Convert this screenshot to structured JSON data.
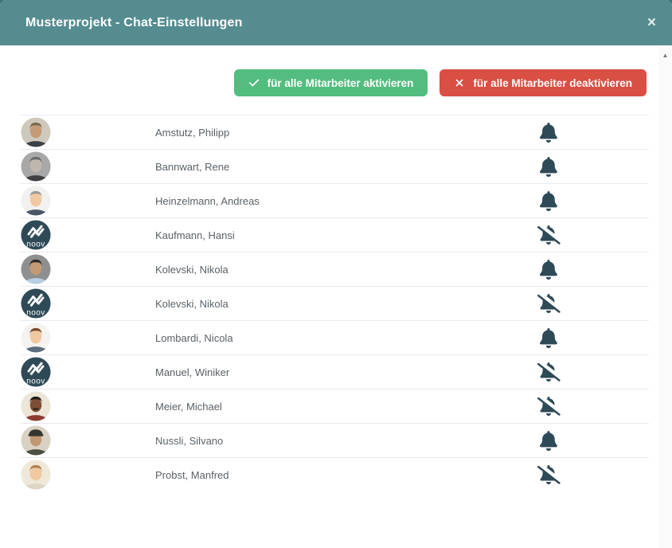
{
  "colors": {
    "backdrop": "#3e7378",
    "header_bg": "#558c90",
    "activate_bg": "#53bd7f",
    "deactivate_bg": "#d94f43",
    "divider": "#e7eaf0",
    "name_text": "#5a6167",
    "bell_icon": "#2e4a57"
  },
  "modal": {
    "title": "Musterprojekt - Chat-Einstellungen",
    "close_glyph": "×"
  },
  "toolbar": {
    "activate_button_label": "für alle Mitarbeiter aktivieren",
    "deactivate_button_label": "für alle Mitarbeiter deaktivieren"
  },
  "scrollbar": {
    "up_glyph": "▲"
  },
  "list": {
    "people": [
      {
        "name": "Amstutz, Philipp",
        "notifications": "on",
        "avatar": {
          "kind": "face",
          "bg": "#cfc9bd",
          "skin": "#c59a76",
          "hair": "#7a6a4e",
          "shirt": "#3b4048"
        }
      },
      {
        "name": "Bannwart, Rene",
        "notifications": "on",
        "avatar": {
          "kind": "face",
          "bg": "#a8a8a8",
          "skin": "#c0b8af",
          "hair": "#6b6b6b",
          "shirt": "#3f3f41"
        }
      },
      {
        "name": "Heinzelmann, Andreas",
        "notifications": "on",
        "avatar": {
          "kind": "face",
          "bg": "#f2f1ef",
          "skin": "#f0c9a2",
          "hair": "#9a9a98",
          "shirt": "#4a5668"
        }
      },
      {
        "name": "Kaufmann, Hansi",
        "notifications": "off",
        "avatar": {
          "kind": "logo",
          "bg": "#2e4a57",
          "fg": "#ffffff",
          "text": "noov"
        }
      },
      {
        "name": "Kolevski, Nikola",
        "notifications": "on",
        "avatar": {
          "kind": "face",
          "bg": "#8f8f8f",
          "skin": "#c49a74",
          "hair": "#2e2924",
          "shirt": "#b8cfe3"
        }
      },
      {
        "name": "Kolevski, Nikola",
        "notifications": "off",
        "avatar": {
          "kind": "logo",
          "bg": "#2e4a57",
          "fg": "#ffffff",
          "text": "noov"
        }
      },
      {
        "name": "Lombardi, Nicola",
        "notifications": "on",
        "avatar": {
          "kind": "face",
          "bg": "#f5f3f0",
          "skin": "#f1c9a1",
          "hair": "#7b4b2c",
          "shirt": "#5d6e7e"
        }
      },
      {
        "name": "Manuel, Winiker",
        "notifications": "off",
        "avatar": {
          "kind": "logo",
          "bg": "#2e4a57",
          "fg": "#ffffff",
          "text": "noov"
        }
      },
      {
        "name": "Meier, Michael",
        "notifications": "off",
        "avatar": {
          "kind": "face",
          "bg": "#ece5d8",
          "skin": "#7d4e33",
          "hair": "#221d1a",
          "shirt": "#8d3b2f",
          "mustache": true
        }
      },
      {
        "name": "Nussli, Silvano",
        "notifications": "on",
        "avatar": {
          "kind": "face",
          "bg": "#d9d2c4",
          "skin": "#c29873",
          "hair": "#4a4338",
          "shirt": "#4c4f3f",
          "hat": "#33362e"
        }
      },
      {
        "name": "Probst, Manfred",
        "notifications": "off",
        "avatar": {
          "kind": "face",
          "bg": "#efe7d8",
          "skin": "#f0c9a0",
          "hair": "#b07f4f",
          "shirt": "#ddd5c5"
        }
      }
    ]
  }
}
